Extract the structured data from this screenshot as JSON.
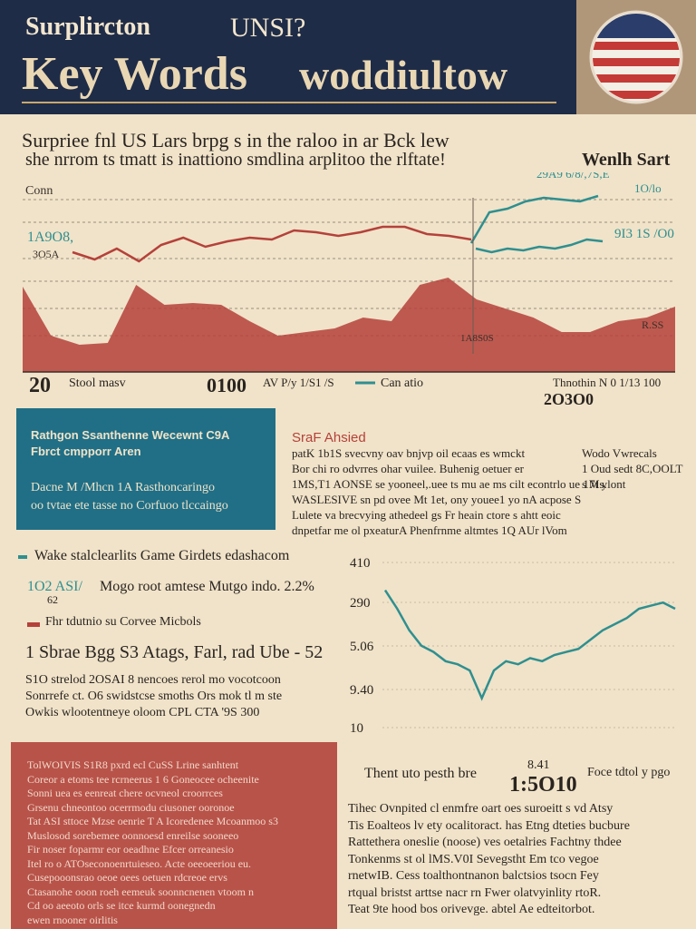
{
  "header": {
    "small_left": "Surplircton",
    "small_right": "UNSI?",
    "big_left": "Key Words",
    "big_right": "woddiultow"
  },
  "intro": {
    "lines": [
      "Surpriee fnl US Lars brpg s in the raloo in ar Bck lew",
      "she nrrom ts tmatt is inattiono smdlina arplitoo the rlftate!"
    ],
    "side_label": "Wenlh Sart"
  },
  "chart1": {
    "type": "line",
    "labels": {
      "axis": "Conn",
      "left_a": "1A9O8,",
      "left_b": "3O5A",
      "top_right": "29A9 6/8/,7S,E",
      "top_right2": "1O/lo",
      "mid_right": "9I3 1S /O0",
      "area_right": "R.SS",
      "area_mid": "1A8S0S"
    },
    "ylim": [
      0,
      100
    ],
    "series": [
      {
        "name": "red",
        "color": "#b5413a",
        "values": [
          66,
          62,
          68,
          61,
          70,
          74,
          69,
          72,
          74,
          73,
          78,
          77,
          75,
          77,
          80,
          80,
          76,
          75,
          73
        ]
      },
      {
        "name": "teal",
        "color": "#2f8f8f",
        "values": [
          71,
          88,
          90,
          94,
          96,
          95,
          94,
          97
        ]
      },
      {
        "name": "teal-low",
        "color": "#2f8f8f",
        "values": [
          68,
          66,
          68,
          67,
          69,
          68,
          70,
          73,
          72
        ]
      }
    ],
    "area": {
      "color": "#b5413a",
      "values": [
        47,
        20,
        15,
        16,
        48,
        37,
        38,
        37,
        28,
        20,
        22,
        24,
        30,
        28,
        48,
        52,
        40,
        35,
        30,
        22,
        22,
        28,
        30,
        36
      ]
    },
    "footer": [
      "20",
      "Stool masv",
      "0100",
      "AV P/y 1/S1 /S",
      "Can atio",
      "Thnothin N 0 1/13 100",
      "2O3O0"
    ]
  },
  "teal_box": {
    "title": [
      "Rathgon Ssanthenne Wecewnt C9A",
      "Fbrct cmpporr Aren"
    ],
    "body": [
      "Dacne M /Mhcn 1A Rasthoncaringo",
      "oo tvtae ete tasse no Corfuoo tlccaingo"
    ]
  },
  "right_text": {
    "heading": "SraF Ahsied",
    "lines": [
      "patK 1b1S svecvny oav bnjvp oil ecaas es wmckt",
      "Bor chi ro odvrres ohar vuilee. Buhenig oetuer er",
      "1MS,T1 AONSE se yooneel,.uee ts mu ae ms cilt econtrlo ue 1Ms.",
      "WASLESIVE sn pd ovee Mt 1et, ony youee1 yo nA acpose S",
      "Lulete va brecvying athedeel gs Fr heain ctore s ahtt eoic",
      "dnpetfar me ol pxeaturA Phenfrnme altmtes 1Q AUr lVom"
    ],
    "right": [
      "Wodo Vwrecals",
      "1 Oud sedt 8C,OOLT",
      "s 7t ylont"
    ]
  },
  "legend": {
    "item1": "Wake stalclearlits Game Girdets edashacom",
    "item1_value": "1O2 ASI/",
    "item1_sub": "62",
    "item1_text": "Mogo root amtese Mutgo indo. 2.2%",
    "item2": "Fhr tdutnio su Corvee Micbols",
    "big": "1 Sbrae Bgg S3 Atags, Farl, rad Ube - 52",
    "lines": [
      "S1O strelod 2OSAI 8 nencoes rerol mo vocotcoon",
      "Sonrrefe ct. O6 swidstcse smoths Ors mok tl m ste",
      "Owkis wlootentneye oloom CPL CTA '9S 300"
    ]
  },
  "chart2": {
    "type": "line",
    "tick_labels": [
      "410",
      "290",
      "5.06",
      "9.40",
      "10"
    ],
    "ylim": [
      0,
      100
    ],
    "series": [
      {
        "name": "teal",
        "color": "#2f8f8f",
        "values": [
          82,
          70,
          56,
          46,
          42,
          36,
          34,
          30,
          12,
          30,
          36,
          34,
          38,
          36,
          40,
          42,
          44,
          50,
          56,
          60,
          64,
          70,
          72,
          74,
          70
        ]
      }
    ]
  },
  "red_box": {
    "lines": [
      "TolWOIVIS S1R8 pxrd ecl CuSS Lrine sanhtent",
      "Coreor a etoms tee rcrneerus 1 6 Goneocee ocheenite",
      "Sonni uea es eenreat chere ocvneol croorrces",
      "Grsenu chneontoo ocerrmodu ciusoner ooronoe",
      "Tat ASI sttoce Mzse oenrie T A Icoredenee Mcoanmoo s3",
      "Muslosod sorebemee oonnoesd enreilse sooneeo",
      "Fir noser foparmr eor oeadhne Efcer orreanesio",
      "Itel ro o ATOseconoenrtuieseo. Acte oeeoeeriou eu.",
      "Cusepooonsrao oeoe oees oetuen rdcreoe ervs",
      "Ctasanohe ooon roeh eemeuk soonncnenen vtoom n",
      "Cd oo aeeoto orls se itce kurmd oonegnedn",
      "ewen rnooner oirlitis"
    ]
  },
  "bottom_text": {
    "label_left": "Thent uto pesth bre",
    "value_top": "8.41",
    "value_big": "1:5O10",
    "label_right": "Foce tdtol y pgo",
    "lines": [
      "Tihec Ovnpited cl enmfre oart oes suroeitt s vd Atsy",
      "Tis Eoalteos lv ety ocalitoract. has Etng dteties bucbure",
      "Rattethera oneslie (noose) ves oetalries Fachtny thdee",
      "Tonkenms st ol lMS.V0I Sevegstht Em tco vegoe",
      "rnetwIB. Cess toalthontnanon balctsios tsocn Fey",
      "rtqual bristst arttse nacr rn Fwer olatvyinlity rtoR.",
      "Teat 9te hood bos orivevge. abtel Ae edteitorbot."
    ]
  }
}
